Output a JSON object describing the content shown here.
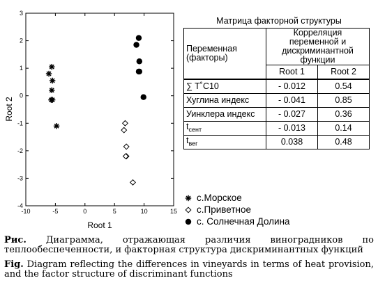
{
  "chart_data": {
    "type": "scatter",
    "xlabel": "Root 1",
    "ylabel": "Root 2",
    "xlim": [
      -10,
      15
    ],
    "ylim": [
      -4,
      3
    ],
    "xticks": [
      -10,
      -5,
      0,
      5,
      10,
      15
    ],
    "yticks": [
      -4,
      -3,
      -2,
      -1,
      0,
      1,
      2,
      3
    ],
    "xtick_labels": [
      "-10",
      "-5",
      "0",
      "5",
      "10",
      "15"
    ],
    "ytick_labels": [
      "-4",
      "-3",
      "-2",
      "-1",
      "0",
      "1",
      "2",
      "3"
    ],
    "grid": false,
    "legend_position": "bottom-right",
    "series": [
      {
        "name": "с.Морское",
        "marker": "asterisk",
        "points": [
          [
            -5.6,
            1.05
          ],
          [
            -6.1,
            0.8
          ],
          [
            -5.5,
            0.55
          ],
          [
            -5.6,
            0.2
          ],
          [
            -5.7,
            -0.15
          ],
          [
            -5.5,
            -0.15
          ],
          [
            -4.8,
            -1.1
          ]
        ]
      },
      {
        "name": "с.Приветное",
        "marker": "diamond",
        "points": [
          [
            6.8,
            -1.0
          ],
          [
            6.6,
            -1.25
          ],
          [
            7.0,
            -1.85
          ],
          [
            7.0,
            -2.2
          ],
          [
            6.9,
            -2.2
          ],
          [
            8.1,
            -3.15
          ]
        ]
      },
      {
        "name": "с. Солнечная Долина",
        "marker": "dot",
        "points": [
          [
            9.1,
            2.1
          ],
          [
            8.7,
            1.85
          ],
          [
            9.2,
            1.25
          ],
          [
            9.1,
            0.88
          ],
          [
            9.2,
            0.88
          ],
          [
            9.9,
            -0.05
          ]
        ]
      }
    ]
  },
  "matrix": {
    "title": "Матрица факторной структуры",
    "col_var_header": "Переменная (факторы)",
    "col_corr_header": "Корреляция переменной и дискриминантной функции",
    "root1_header": "Root 1",
    "root2_header": "Root 2",
    "rows": [
      {
        "main": "∑ T˚C10",
        "sub": "",
        "root1": "- 0.012",
        "root2": "0.54"
      },
      {
        "main": "Хуглина индекс",
        "sub": "",
        "root1": "- 0.041",
        "root2": "0.85"
      },
      {
        "main": "Уинклера индекс",
        "sub": "",
        "root1": "- 0.027",
        "root2": "0.36"
      },
      {
        "main": "t",
        "sub": "сент",
        "root1": "- 0.013",
        "root2": "0.14"
      },
      {
        "main": "t",
        "sub": "вег",
        "root1": "0.038",
        "root2": "0.48"
      }
    ]
  },
  "caption": {
    "ru_label": "Рис.",
    "ru_text": " Диаграмма, отражающая различия виноградников по теплообеспеченности, и факторная структура дискриминантных функций",
    "en_label": "Fig.",
    "en_text": " Diagram reflecting the differences in vineyards in terms of heat provision, and the factor structure of discriminant functions"
  }
}
